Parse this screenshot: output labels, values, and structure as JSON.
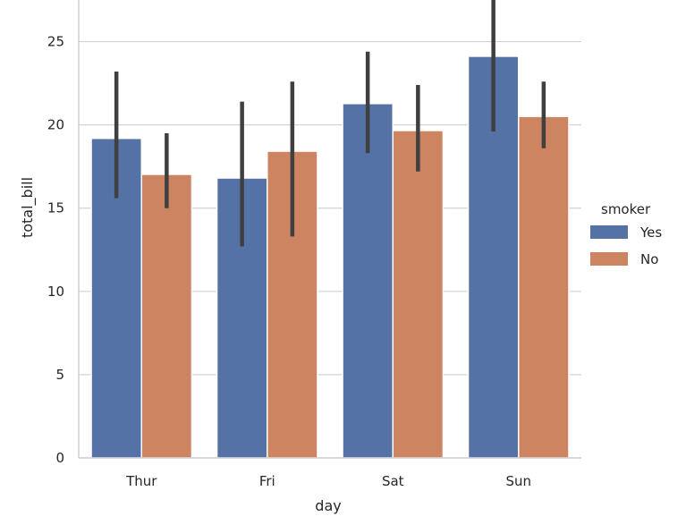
{
  "chart_data": {
    "type": "bar",
    "categories": [
      "Thur",
      "Fri",
      "Sat",
      "Sun"
    ],
    "series": [
      {
        "name": "Yes",
        "values": [
          19.19,
          16.81,
          21.28,
          24.12
        ],
        "ci_low": [
          15.6,
          12.7,
          18.3,
          19.6
        ],
        "ci_high": [
          23.2,
          21.4,
          24.4,
          28.2
        ]
      },
      {
        "name": "No",
        "values": [
          17.03,
          18.42,
          19.66,
          20.51
        ],
        "ci_low": [
          15.0,
          13.3,
          17.2,
          18.6
        ],
        "ci_high": [
          19.5,
          22.6,
          22.4,
          22.6
        ]
      }
    ],
    "xlabel": "day",
    "ylabel": "total_bill",
    "ylim": [
      0,
      27.5
    ],
    "yticks": [
      0,
      5,
      10,
      15,
      20,
      25
    ],
    "grid": true,
    "legend": {
      "title": "smoker",
      "placement": "center-right"
    },
    "colors": {
      "Yes": "#5572a6",
      "No": "#cc8560",
      "error_bar": "#3f3f3f",
      "grid": "#d3d3d3",
      "spine": "#cccccc"
    }
  }
}
